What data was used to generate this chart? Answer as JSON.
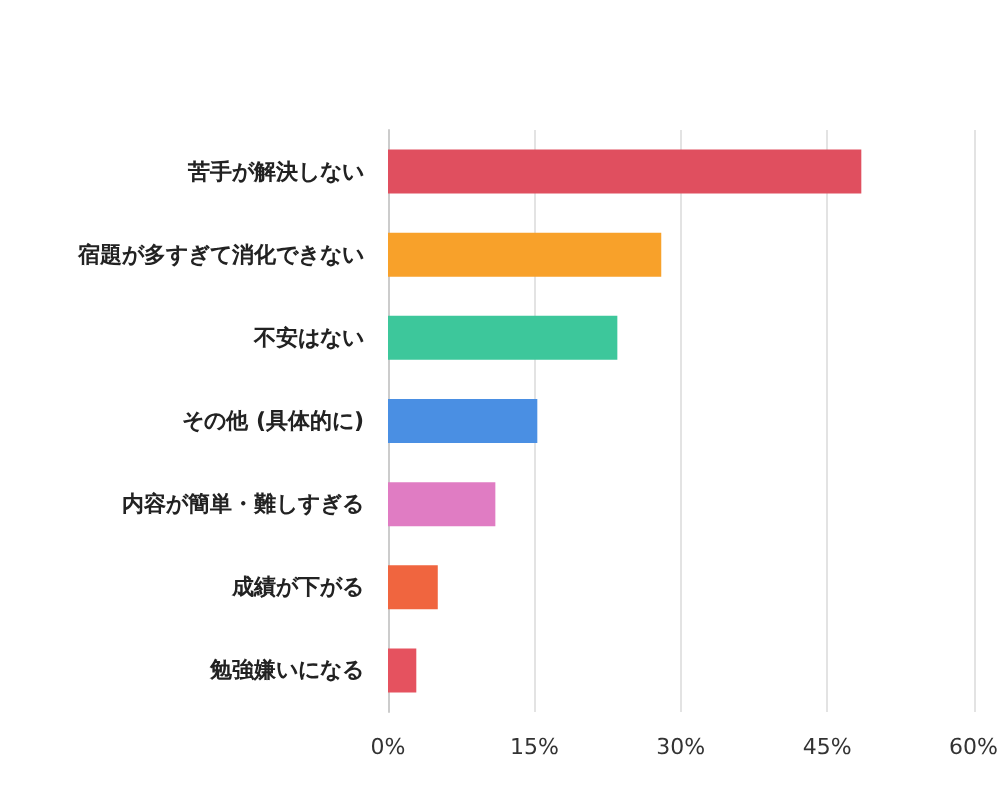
{
  "chart_data": {
    "type": "bar",
    "orientation": "horizontal",
    "categories": [
      "苦手が解決しない",
      "宿題が多すぎて消化できない",
      "不安はない",
      "その他 (具体的に)",
      "内容が簡単・難しすぎる",
      "成績が下がる",
      "勉強嫌いになる"
    ],
    "values": [
      48.5,
      28,
      23.5,
      15.3,
      11,
      5.1,
      2.9
    ],
    "colors": [
      "#e04f5f",
      "#f8a12a",
      "#3dc79b",
      "#4a8fe3",
      "#e07cc3",
      "#f0653f",
      "#e5525f"
    ],
    "xlim": [
      0,
      60
    ],
    "xticks": [
      {
        "value": 0,
        "label": "0%"
      },
      {
        "value": 15,
        "label": "15%"
      },
      {
        "value": 30,
        "label": "30%"
      },
      {
        "value": 45,
        "label": "45%"
      },
      {
        "value": 60,
        "label": "60%"
      }
    ],
    "grid": "x"
  }
}
